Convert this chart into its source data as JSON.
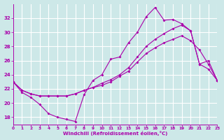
{
  "xlabel": "Windchill (Refroidissement éolien,°C)",
  "xlim": [
    0,
    23
  ],
  "ylim": [
    17,
    34
  ],
  "yticks": [
    18,
    20,
    22,
    24,
    26,
    28,
    30,
    32
  ],
  "xticks": [
    0,
    1,
    2,
    3,
    4,
    5,
    6,
    7,
    8,
    9,
    10,
    11,
    12,
    13,
    14,
    15,
    16,
    17,
    18,
    19,
    20,
    21,
    22,
    23
  ],
  "background_color": "#cde8e8",
  "grid_color": "#ffffff",
  "line_color": "#aa00aa",
  "line1_x": [
    0,
    1,
    2,
    3,
    4,
    5,
    6,
    7,
    8,
    9,
    10,
    11,
    12,
    13,
    14,
    15,
    16,
    17,
    18,
    19,
    20,
    21,
    22,
    23
  ],
  "line1_y": [
    23,
    21.5,
    20.8,
    19.8,
    18.5,
    18.0,
    17.7,
    17.4,
    21.2,
    23.2,
    24.0,
    26.2,
    26.5,
    28.5,
    30.0,
    32.2,
    33.5,
    31.7,
    31.8,
    31.2,
    30.2,
    25.5,
    24.8,
    23.2
  ],
  "line2_x": [
    0,
    1,
    2,
    3,
    4,
    5,
    6,
    7,
    8,
    9,
    10,
    11,
    12,
    13,
    14,
    15,
    16,
    17,
    18,
    19,
    20,
    21,
    22,
    23
  ],
  "line2_y": [
    23.0,
    21.8,
    21.3,
    21.0,
    21.0,
    21.0,
    21.0,
    21.3,
    21.8,
    22.2,
    22.8,
    23.3,
    24.0,
    25.0,
    26.5,
    28.0,
    29.0,
    29.8,
    30.5,
    31.0,
    30.2,
    25.5,
    26.0,
    23.2
  ],
  "line3_x": [
    0,
    1,
    2,
    3,
    4,
    5,
    6,
    7,
    8,
    9,
    10,
    11,
    12,
    13,
    14,
    15,
    16,
    17,
    18,
    19,
    20,
    21,
    22,
    23
  ],
  "line3_y": [
    23.0,
    21.8,
    21.3,
    21.0,
    21.0,
    21.0,
    21.0,
    21.3,
    21.8,
    22.2,
    22.5,
    23.0,
    23.8,
    24.5,
    25.8,
    27.0,
    27.8,
    28.5,
    29.0,
    29.5,
    28.8,
    27.5,
    25.5,
    23.2
  ]
}
